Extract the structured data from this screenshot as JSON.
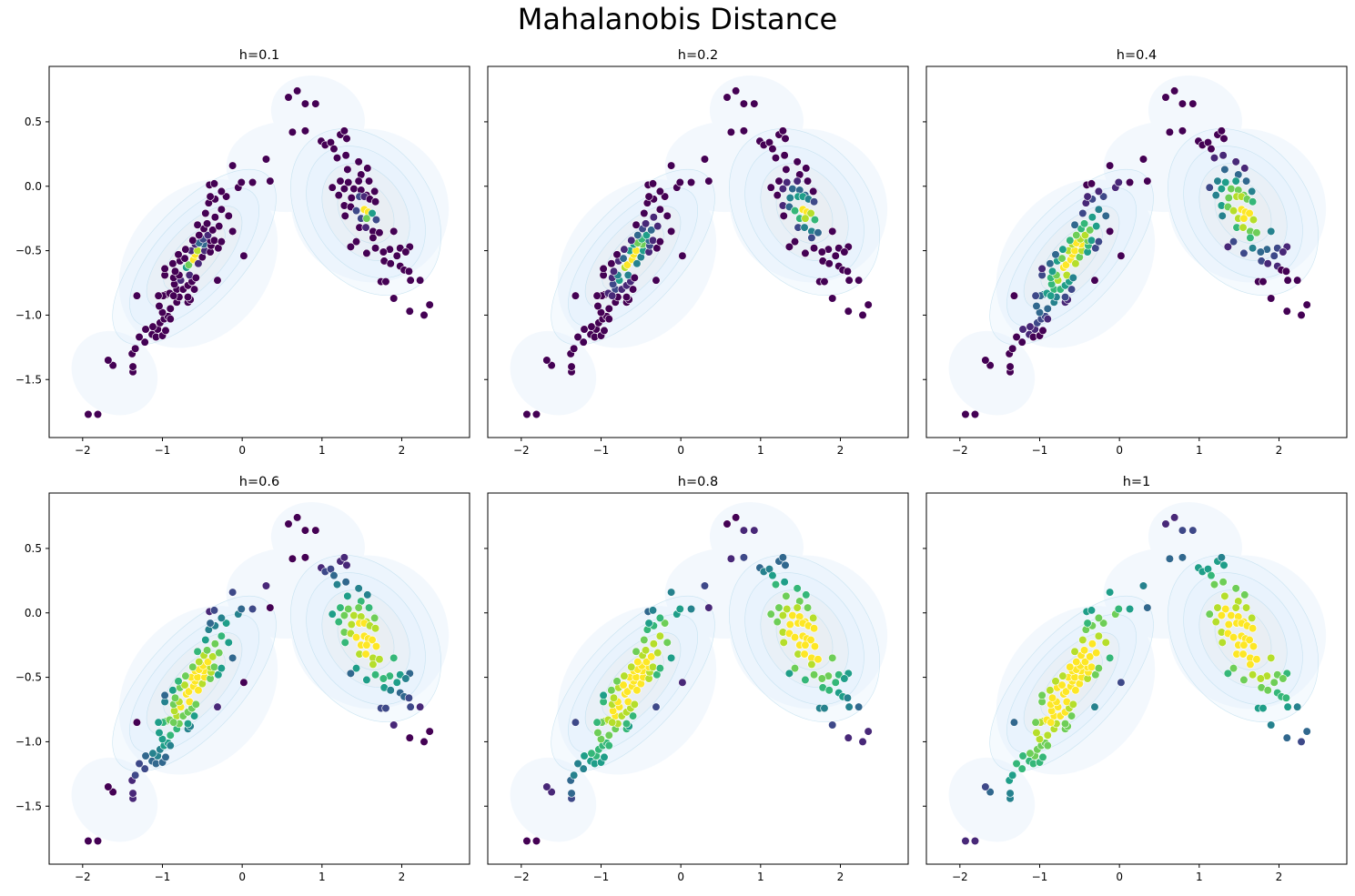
{
  "figure": {
    "title": "Mahalanobis Distance"
  },
  "chart_data": {
    "type": "scatter",
    "title": "Mahalanobis Distance",
    "xlim": [
      -2.42,
      2.85
    ],
    "ylim": [
      -1.95,
      0.93
    ],
    "xticks": [
      -2,
      -1,
      0,
      1,
      2
    ],
    "xtick_labels": [
      "−2",
      "−1",
      "0",
      "1",
      "2"
    ],
    "yticks": [
      0.5,
      0.0,
      -0.5,
      -1.0,
      -1.5
    ],
    "ytick_labels": [
      "0.5",
      "0.0",
      "−0.5",
      "−1.0",
      "−1.5"
    ],
    "grid": false,
    "colormap": "viridis",
    "background": "kde-density-contours",
    "colors": {
      "viridis": [
        "#440154",
        "#482878",
        "#3e4989",
        "#31688e",
        "#26828e",
        "#1f9e89",
        "#35b779",
        "#6ece58",
        "#b5de2b",
        "#fde725"
      ],
      "kde_fill": "#e3f2fb",
      "kde_line": "#b8dced"
    },
    "panels": [
      {
        "title": "h=0.1",
        "h": 0.1
      },
      {
        "title": "h=0.2",
        "h": 0.2
      },
      {
        "title": "h=0.4",
        "h": 0.4
      },
      {
        "title": "h=0.6",
        "h": 0.6
      },
      {
        "title": "h=0.8",
        "h": 0.8
      },
      {
        "title": "h=1",
        "h": 1.0
      }
    ],
    "points": [
      [
        -1.93,
        -1.77
      ],
      [
        -1.81,
        -1.77
      ],
      [
        -1.37,
        -1.44
      ],
      [
        -1.37,
        -1.4
      ],
      [
        -1.62,
        -1.39
      ],
      [
        -1.68,
        -1.35
      ],
      [
        -1.38,
        -1.3
      ],
      [
        -1.34,
        -1.26
      ],
      [
        -1.22,
        -1.21
      ],
      [
        -1.29,
        -1.17
      ],
      [
        -1.13,
        -1.15
      ],
      [
        -1.21,
        -1.11
      ],
      [
        -1.06,
        -1.11
      ],
      [
        -1.12,
        -1.09
      ],
      [
        -1.08,
        -1.17
      ],
      [
        -1.0,
        -1.16
      ],
      [
        -0.96,
        -1.12
      ],
      [
        -1.03,
        -1.06
      ],
      [
        -0.98,
        -1.03
      ],
      [
        -0.93,
        -1.01
      ],
      [
        -1.0,
        -0.98
      ],
      [
        -0.9,
        -1.03
      ],
      [
        -1.04,
        -0.93
      ],
      [
        -0.9,
        -0.95
      ],
      [
        -0.82,
        -0.9
      ],
      [
        -0.68,
        -0.9
      ],
      [
        -0.65,
        -0.88
      ],
      [
        -0.68,
        -0.86
      ],
      [
        -0.79,
        -0.86
      ],
      [
        -0.95,
        -0.84
      ],
      [
        -1.32,
        -0.85
      ],
      [
        -0.82,
        -0.8
      ],
      [
        -0.99,
        -0.85
      ],
      [
        -1.05,
        -0.85
      ],
      [
        -0.91,
        -0.83
      ],
      [
        -0.86,
        -0.85
      ],
      [
        -0.74,
        -0.8
      ],
      [
        -0.6,
        -0.8
      ],
      [
        -0.85,
        -0.76
      ],
      [
        -0.77,
        -0.73
      ],
      [
        -0.68,
        -0.77
      ],
      [
        -0.63,
        -0.74
      ],
      [
        -0.31,
        -0.73
      ],
      [
        -0.86,
        -0.71
      ],
      [
        -0.97,
        -0.69
      ],
      [
        -0.79,
        -0.69
      ],
      [
        -0.66,
        -0.69
      ],
      [
        -0.58,
        -0.71
      ],
      [
        -0.84,
        -0.66
      ],
      [
        -0.7,
        -0.63
      ],
      [
        -0.97,
        -0.64
      ],
      [
        -0.87,
        -0.6
      ],
      [
        -0.78,
        -0.58
      ],
      [
        -0.67,
        -0.61
      ],
      [
        -0.61,
        -0.57
      ],
      [
        -0.55,
        -0.6
      ],
      [
        -0.72,
        -0.56
      ],
      [
        -0.8,
        -0.53
      ],
      [
        -0.59,
        -0.53
      ],
      [
        -0.5,
        -0.55
      ],
      [
        0.02,
        -0.54
      ],
      [
        -0.64,
        -0.5
      ],
      [
        -0.56,
        -0.5
      ],
      [
        -0.47,
        -0.5
      ],
      [
        -0.4,
        -0.51
      ],
      [
        -0.48,
        -0.45
      ],
      [
        -0.39,
        -0.46
      ],
      [
        -0.59,
        -0.45
      ],
      [
        -0.3,
        -0.48
      ],
      [
        -0.54,
        -0.44
      ],
      [
        -0.71,
        -0.49
      ],
      [
        -0.4,
        -0.42
      ],
      [
        -0.35,
        -0.42
      ],
      [
        -0.26,
        -0.43
      ],
      [
        -0.49,
        -0.41
      ],
      [
        -0.62,
        -0.42
      ],
      [
        -0.54,
        -0.38
      ],
      [
        -0.43,
        -0.38
      ],
      [
        -0.12,
        -0.35
      ],
      [
        -0.37,
        -0.34
      ],
      [
        -0.48,
        -0.33
      ],
      [
        -0.29,
        -0.31
      ],
      [
        -0.56,
        -0.3
      ],
      [
        -0.44,
        -0.29
      ],
      [
        -0.34,
        -0.24
      ],
      [
        -0.17,
        -0.23
      ],
      [
        -0.46,
        -0.21
      ],
      [
        -0.26,
        -0.18
      ],
      [
        -0.42,
        -0.13
      ],
      [
        -0.34,
        -0.1
      ],
      [
        -0.2,
        -0.08
      ],
      [
        -0.4,
        -0.08
      ],
      [
        -0.26,
        -0.04
      ],
      [
        -0.41,
        0.01
      ],
      [
        -0.05,
        -0.01
      ],
      [
        -0.01,
        0.03
      ],
      [
        -0.35,
        0.02
      ],
      [
        -0.12,
        0.16
      ],
      [
        0.13,
        0.03
      ],
      [
        0.35,
        0.04
      ],
      [
        0.3,
        0.21
      ],
      [
        0.58,
        0.69
      ],
      [
        0.69,
        0.74
      ],
      [
        0.63,
        0.42
      ],
      [
        0.79,
        0.64
      ],
      [
        0.79,
        0.43
      ],
      [
        0.92,
        0.64
      ],
      [
        0.99,
        0.35
      ],
      [
        1.04,
        0.32
      ],
      [
        1.11,
        0.34
      ],
      [
        1.15,
        0.29
      ],
      [
        1.23,
        0.4
      ],
      [
        1.28,
        0.43
      ],
      [
        1.31,
        0.37
      ],
      [
        1.19,
        0.22
      ],
      [
        1.3,
        0.24
      ],
      [
        1.46,
        0.19
      ],
      [
        1.32,
        0.13
      ],
      [
        1.49,
        0.09
      ],
      [
        1.57,
        0.14
      ],
      [
        1.23,
        0.04
      ],
      [
        1.33,
        0.03
      ],
      [
        1.46,
        0.04
      ],
      [
        1.59,
        0.04
      ],
      [
        1.13,
        -0.01
      ],
      [
        1.28,
        -0.02
      ],
      [
        1.4,
        -0.02
      ],
      [
        1.49,
        -0.03
      ],
      [
        1.56,
        -0.07
      ],
      [
        1.66,
        -0.04
      ],
      [
        1.21,
        -0.07
      ],
      [
        1.37,
        -0.09
      ],
      [
        1.47,
        -0.08
      ],
      [
        1.53,
        -0.08
      ],
      [
        1.6,
        -0.1
      ],
      [
        1.67,
        -0.12
      ],
      [
        1.28,
        -0.15
      ],
      [
        1.36,
        -0.16
      ],
      [
        1.53,
        -0.18
      ],
      [
        1.43,
        -0.19
      ],
      [
        1.58,
        -0.2
      ],
      [
        1.29,
        -0.23
      ],
      [
        1.49,
        -0.25
      ],
      [
        1.63,
        -0.21
      ],
      [
        1.56,
        -0.25
      ],
      [
        1.68,
        -0.26
      ],
      [
        1.47,
        -0.32
      ],
      [
        1.55,
        -0.32
      ],
      [
        1.64,
        -0.35
      ],
      [
        1.72,
        -0.36
      ],
      [
        1.9,
        -0.35
      ],
      [
        1.64,
        -0.4
      ],
      [
        1.43,
        -0.43
      ],
      [
        1.36,
        -0.47
      ],
      [
        1.67,
        -0.48
      ],
      [
        1.85,
        -0.49
      ],
      [
        1.98,
        -0.48
      ],
      [
        2.1,
        -0.47
      ],
      [
        1.56,
        -0.52
      ],
      [
        1.77,
        -0.51
      ],
      [
        1.94,
        -0.54
      ],
      [
        2.05,
        -0.51
      ],
      [
        1.78,
        -0.58
      ],
      [
        1.86,
        -0.6
      ],
      [
        1.98,
        -0.62
      ],
      [
        2.03,
        -0.65
      ],
      [
        2.09,
        -0.66
      ],
      [
        2.11,
        -0.73
      ],
      [
        1.74,
        -0.74
      ],
      [
        1.8,
        -0.74
      ],
      [
        2.23,
        -0.73
      ],
      [
        1.9,
        -0.87
      ],
      [
        2.1,
        -0.97
      ],
      [
        2.35,
        -0.92
      ],
      [
        2.28,
        -1.0
      ]
    ]
  }
}
